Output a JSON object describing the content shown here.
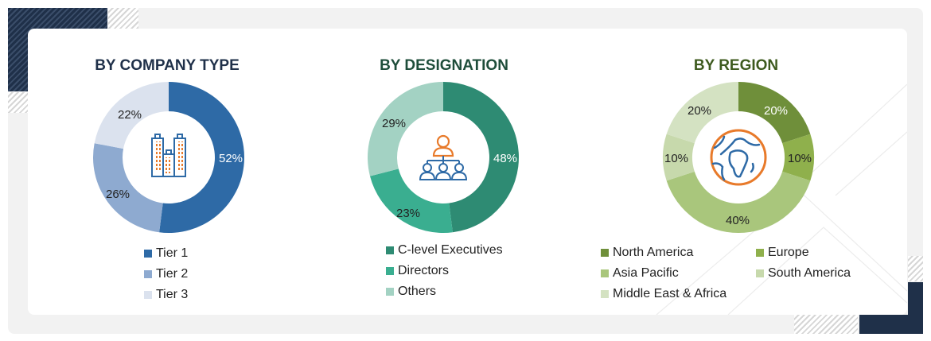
{
  "charts": [
    {
      "title": "BY COMPANY TYPE",
      "title_color": "#1f3049",
      "legend": [
        {
          "label": "Tier 1",
          "color": "#2e6aa6"
        },
        {
          "label": "Tier 2",
          "color": "#8eaad0"
        },
        {
          "label": "Tier 3",
          "color": "#dbe2ee"
        }
      ],
      "labels": [
        "52%",
        "26%",
        "22%"
      ],
      "center_icon": "buildings-icon"
    },
    {
      "title": "BY DESIGNATION",
      "title_color": "#1e4d3a",
      "legend": [
        {
          "label": "C-level Executives",
          "color": "#2e8b73"
        },
        {
          "label": "Directors",
          "color": "#3aae90"
        },
        {
          "label": "Others",
          "color": "#a3d2c3"
        }
      ],
      "labels": [
        "48%",
        "23%",
        "29%"
      ],
      "center_icon": "org-hierarchy-icon"
    },
    {
      "title": "BY REGION",
      "title_color": "#3d5a1e",
      "legend": [
        {
          "label": "North America",
          "color": "#6f8f3a"
        },
        {
          "label": "Europe",
          "color": "#8fb04c"
        },
        {
          "label": "Asia Pacific",
          "color": "#a9c67c"
        },
        {
          "label": "South America",
          "color": "#c7d9ac"
        },
        {
          "label": "Middle East & Africa",
          "color": "#d4e2c2"
        }
      ],
      "labels": [
        "20%",
        "10%",
        "40%",
        "10%",
        "20%"
      ],
      "center_icon": "globe-icon"
    }
  ],
  "chart_data": [
    {
      "type": "pie",
      "subtype": "donut",
      "title": "BY COMPANY TYPE",
      "categories": [
        "Tier 1",
        "Tier 2",
        "Tier 3"
      ],
      "values": [
        52,
        26,
        22
      ],
      "unit": "%",
      "colors": [
        "#2e6aa6",
        "#8eaad0",
        "#dbe2ee"
      ],
      "legend_position": "bottom"
    },
    {
      "type": "pie",
      "subtype": "donut",
      "title": "BY DESIGNATION",
      "categories": [
        "C-level Executives",
        "Directors",
        "Others"
      ],
      "values": [
        48,
        23,
        29
      ],
      "unit": "%",
      "colors": [
        "#2e8b73",
        "#3aae90",
        "#a3d2c3"
      ],
      "legend_position": "bottom"
    },
    {
      "type": "pie",
      "subtype": "donut",
      "title": "BY REGION",
      "categories": [
        "North America",
        "Europe",
        "Asia Pacific",
        "South America",
        "Middle East & Africa"
      ],
      "values": [
        20,
        10,
        40,
        10,
        20
      ],
      "unit": "%",
      "colors": [
        "#6f8f3a",
        "#8fb04c",
        "#a9c67c",
        "#c7d9ac",
        "#d4e2c2"
      ],
      "legend_position": "bottom"
    }
  ]
}
